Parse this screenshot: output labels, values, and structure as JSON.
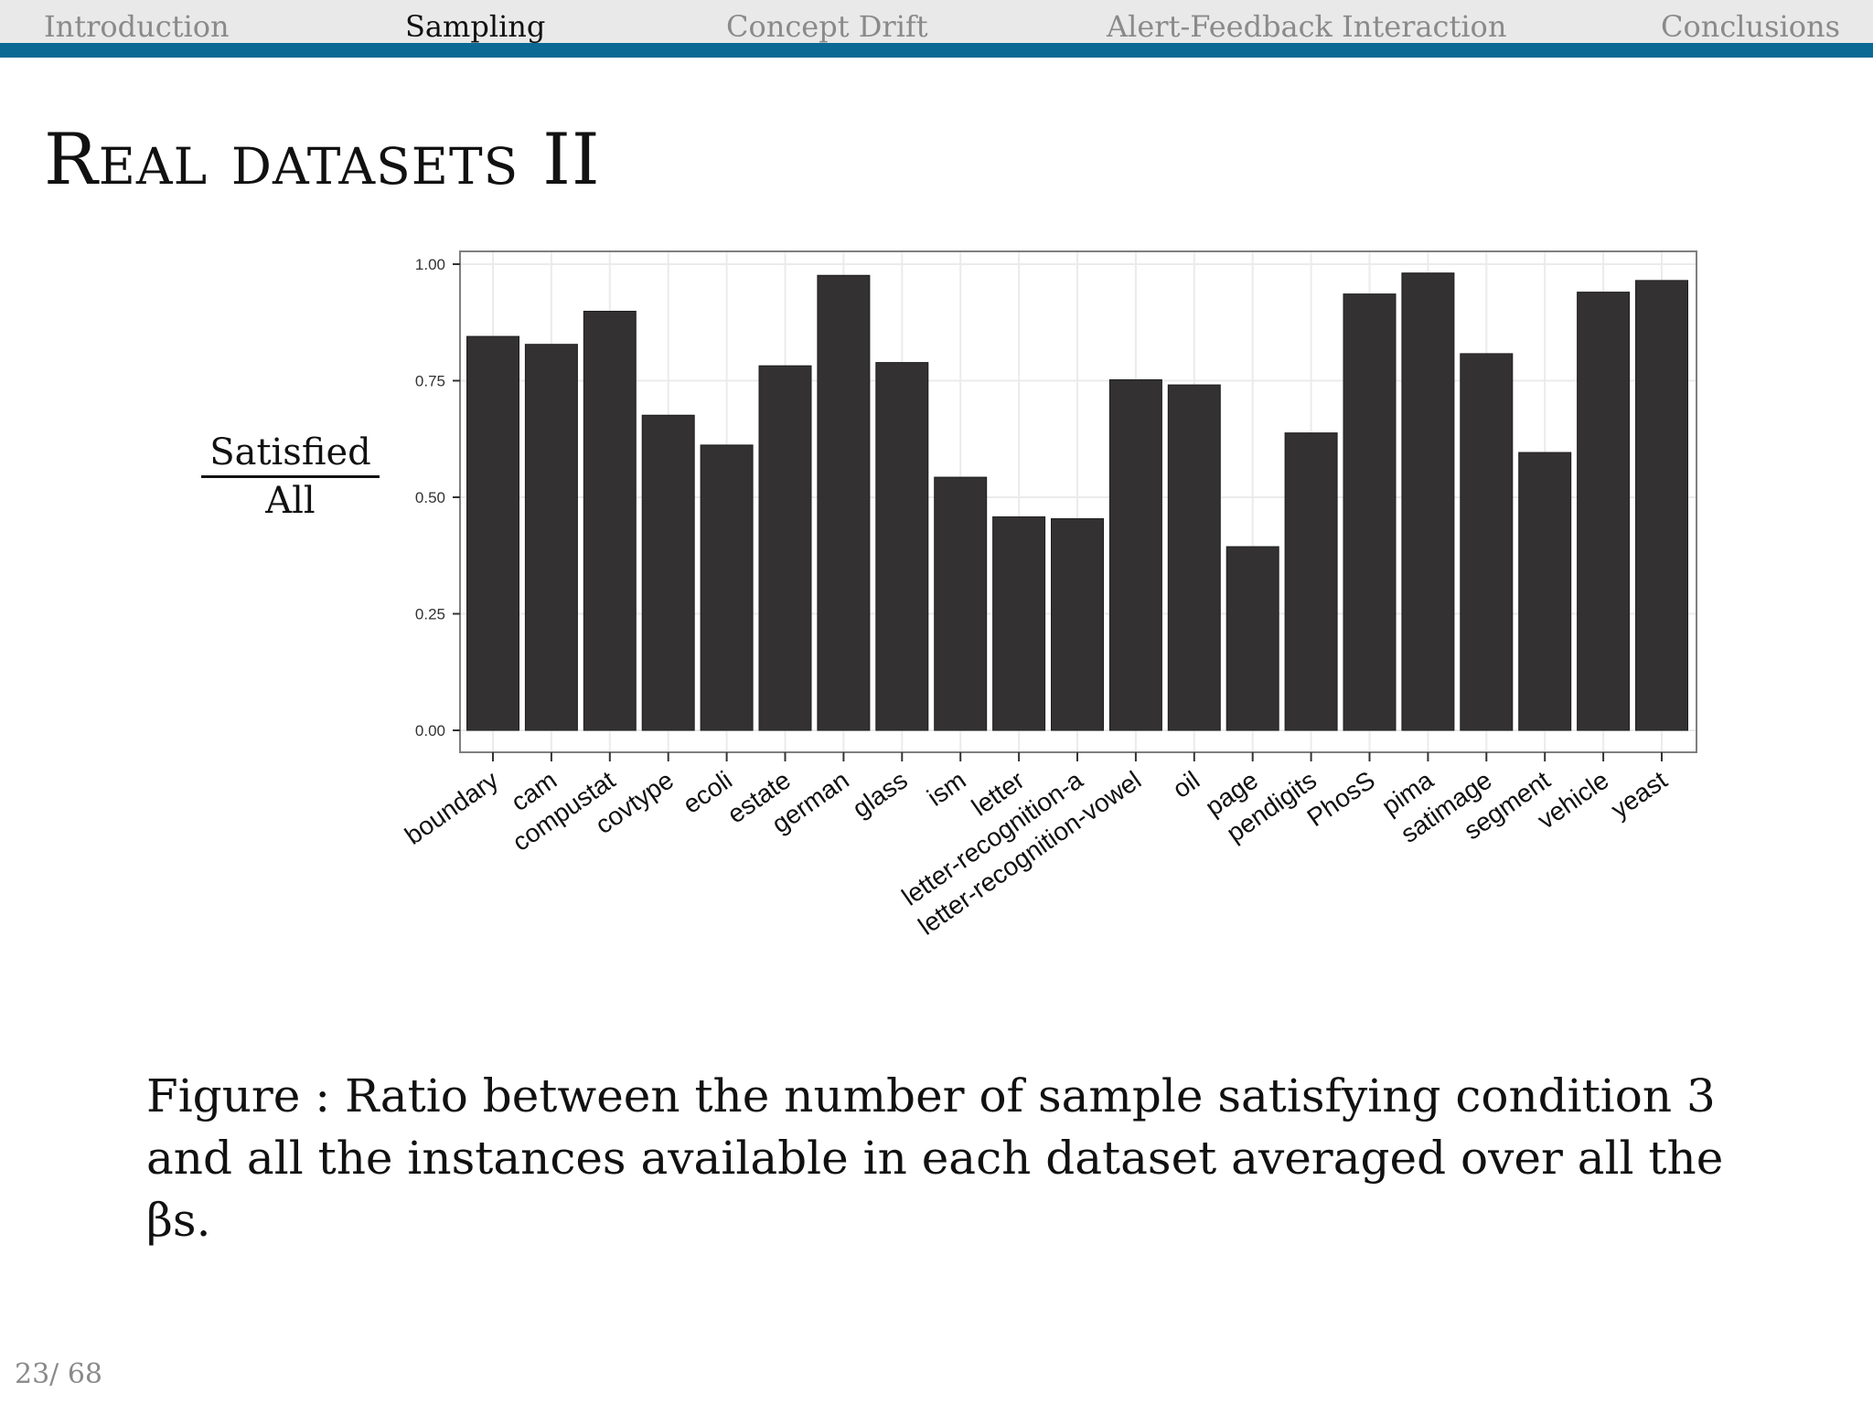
{
  "nav": {
    "items": [
      {
        "label": "Introduction",
        "active": false
      },
      {
        "label": "Sampling",
        "active": true
      },
      {
        "label": "Concept Drift",
        "active": false
      },
      {
        "label": "Alert-Feedback Interaction",
        "active": false
      },
      {
        "label": "Conclusions",
        "active": false
      }
    ],
    "accent_color": "#0b6994"
  },
  "slide": {
    "title": "Real datasets II",
    "ylabel_numerator": "Satisfied",
    "ylabel_denominator": "All",
    "caption": "Figure : Ratio between the number of sample satisfying condition 3 and all the instances available in each dataset averaged over all the βs.",
    "page_number": "23/ 68"
  },
  "chart_data": {
    "type": "bar",
    "bar_color": "#333132",
    "categories": [
      "boundary",
      "cam",
      "compustat",
      "covtype",
      "ecoli",
      "estate",
      "german",
      "glass",
      "ism",
      "letter",
      "letter-recognition-a",
      "letter-recognition-vowel",
      "oil",
      "page",
      "pendigits",
      "PhosS",
      "pima",
      "satimage",
      "segment",
      "vehicle",
      "yeast"
    ],
    "values": [
      0.845,
      0.828,
      0.899,
      0.676,
      0.612,
      0.782,
      0.976,
      0.789,
      0.543,
      0.458,
      0.454,
      0.752,
      0.741,
      0.394,
      0.638,
      0.936,
      0.981,
      0.808,
      0.596,
      0.94,
      0.965
    ],
    "ylim": [
      0,
      1
    ],
    "yticks": [
      "0.00",
      "0.25",
      "0.50",
      "0.75",
      "1.00"
    ],
    "grid": true
  }
}
